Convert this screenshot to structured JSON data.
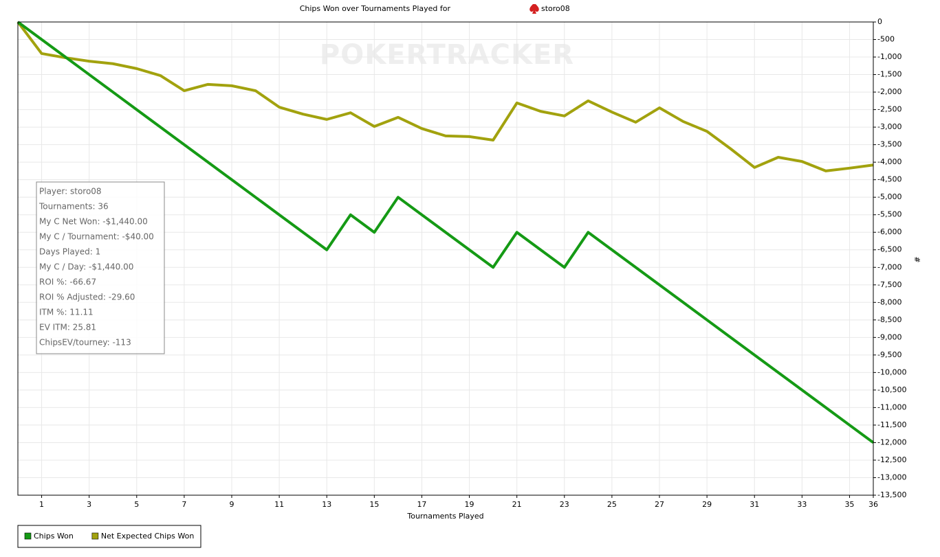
{
  "chart_data": {
    "type": "line",
    "title": "Chips Won over Tournaments Played for",
    "player": "storo08",
    "watermark": "POKERTRACKER",
    "x_label": "Tournaments Played",
    "y_label": "#",
    "x": [
      0,
      1,
      2,
      3,
      4,
      5,
      6,
      7,
      8,
      9,
      10,
      11,
      12,
      13,
      14,
      15,
      16,
      17,
      18,
      19,
      20,
      21,
      22,
      23,
      24,
      25,
      26,
      27,
      28,
      29,
      30,
      31,
      32,
      33,
      34,
      35,
      36
    ],
    "series": [
      {
        "name": "Chips Won",
        "color": "#159a15",
        "values": [
          0,
          -500,
          -1000,
          -1500,
          -2000,
          -2500,
          -3000,
          -3500,
          -4000,
          -4500,
          -5000,
          -5500,
          -6000,
          -6500,
          -5500,
          -6000,
          -5000,
          -5500,
          -6000,
          -6500,
          -7000,
          -6000,
          -6500,
          -7000,
          -6000,
          -6500,
          -7000,
          -7500,
          -8000,
          -8500,
          -9000,
          -9500,
          -10000,
          -10500,
          -11000,
          -11500,
          -12000
        ]
      },
      {
        "name": "Net Expected Chips Won",
        "color": "#a2a20e",
        "values": [
          0,
          -900,
          -1020,
          -1120,
          -1190,
          -1330,
          -1530,
          -1960,
          -1780,
          -1820,
          -1960,
          -2430,
          -2630,
          -2780,
          -2590,
          -2980,
          -2720,
          -3040,
          -3250,
          -3270,
          -3370,
          -2310,
          -2550,
          -2680,
          -2250,
          -2570,
          -2860,
          -2450,
          -2840,
          -3120,
          -3620,
          -4150,
          -3860,
          -3980,
          -4250,
          -4170,
          -4080
        ]
      }
    ],
    "xlim": [
      0,
      36
    ],
    "xticks": [
      1,
      3,
      5,
      7,
      9,
      11,
      13,
      15,
      17,
      19,
      21,
      23,
      25,
      27,
      29,
      31,
      33,
      35,
      36
    ],
    "ylim": [
      -13500,
      0
    ],
    "yticks": [
      0,
      -500,
      {
        "value": -1000,
        "label": "-1,000"
      },
      {
        "value": -1500,
        "label": "-1,500"
      },
      {
        "value": -2000,
        "label": "-2,000"
      },
      {
        "value": -2500,
        "label": "-2,500"
      },
      {
        "value": -3000,
        "label": "-3,000"
      },
      {
        "value": -3500,
        "label": "-3,500"
      },
      {
        "value": -4000,
        "label": "-4,000"
      },
      {
        "value": -4500,
        "label": "-4,500"
      },
      {
        "value": -5000,
        "label": "-5,000"
      },
      {
        "value": -5500,
        "label": "-5,500"
      },
      {
        "value": -6000,
        "label": "-6,000"
      },
      {
        "value": -6500,
        "label": "-6,500"
      },
      {
        "value": -7000,
        "label": "-7,000"
      },
      {
        "value": -7500,
        "label": "-7,500"
      },
      {
        "value": -8000,
        "label": "-8,000"
      },
      {
        "value": -8500,
        "label": "-8,500"
      },
      {
        "value": -9000,
        "label": "-9,000"
      },
      {
        "value": -9500,
        "label": "-9,500"
      },
      {
        "value": -10000,
        "label": "-10,000"
      },
      {
        "value": -10500,
        "label": "-10,500"
      },
      {
        "value": -11000,
        "label": "-11,000"
      },
      {
        "value": -11500,
        "label": "-11,500"
      },
      {
        "value": -12000,
        "label": "-12,000"
      },
      {
        "value": -12500,
        "label": "-12,500"
      },
      {
        "value": -13000,
        "label": "-13,000"
      },
      {
        "value": -13500,
        "label": "-13,500"
      }
    ],
    "grid": true,
    "info": [
      "Player: storo08",
      "Tournaments: 36",
      "My C Net Won: -$1,440.00",
      "My C / Tournament: -$40.00",
      "Days Played: 1",
      "My C / Day: -$1,440.00",
      "ROI %: -66.67",
      "ROI % Adjusted: -29.60",
      "ITM %: 11.11",
      "EV ITM: 25.81",
      "ChipsEV/tourney: -113"
    ]
  }
}
